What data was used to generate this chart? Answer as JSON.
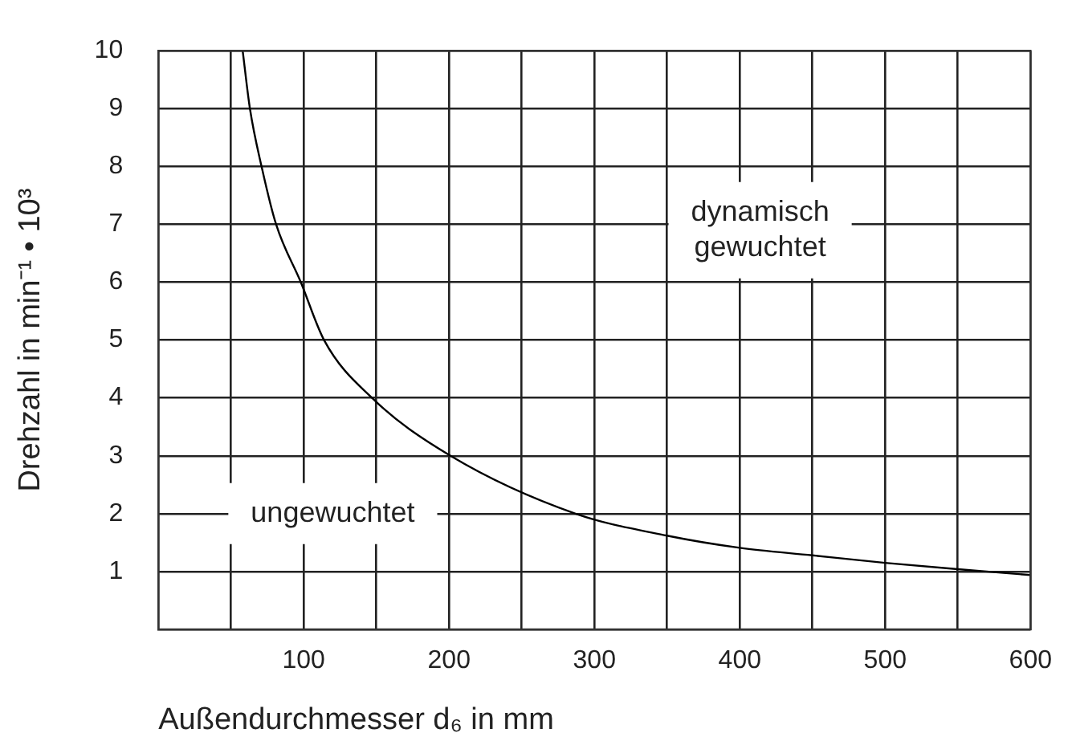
{
  "chart_data": {
    "type": "line",
    "xlabel": "Außendurchmesser d₆ in mm",
    "ylabel": "Drehzahl in min⁻¹ • 10³",
    "x": [
      58,
      63,
      71,
      81,
      98,
      114,
      147,
      201,
      287,
      350,
      400,
      450,
      500,
      550,
      600
    ],
    "series": [
      {
        "color": "#000000",
        "values": [
          10,
          9,
          8,
          7,
          6,
          5,
          4,
          3,
          2,
          1.62,
          1.41,
          1.28,
          1.15,
          1.04,
          0.94
        ]
      }
    ],
    "xlim": [
      0,
      600
    ],
    "xticks": [
      {
        "value": 0,
        "label": null
      },
      {
        "value": 50,
        "label": null
      },
      100,
      {
        "value": 150,
        "label": null
      },
      200,
      {
        "value": 250,
        "label": null
      },
      300,
      {
        "value": 350,
        "label": null
      },
      400,
      {
        "value": 450,
        "label": null
      },
      500,
      {
        "value": 550,
        "label": null
      },
      600
    ],
    "ylim": [
      0,
      10
    ],
    "yticks": [
      {
        "value": 0,
        "label": null
      },
      1,
      2,
      3,
      4,
      5,
      6,
      7,
      8,
      9,
      10
    ],
    "annotations": [
      "dynamisch\ngewuchtet",
      "ungewuchtet"
    ],
    "grid": true,
    "legend": false,
    "marker": "none",
    "line_style": "solid"
  }
}
